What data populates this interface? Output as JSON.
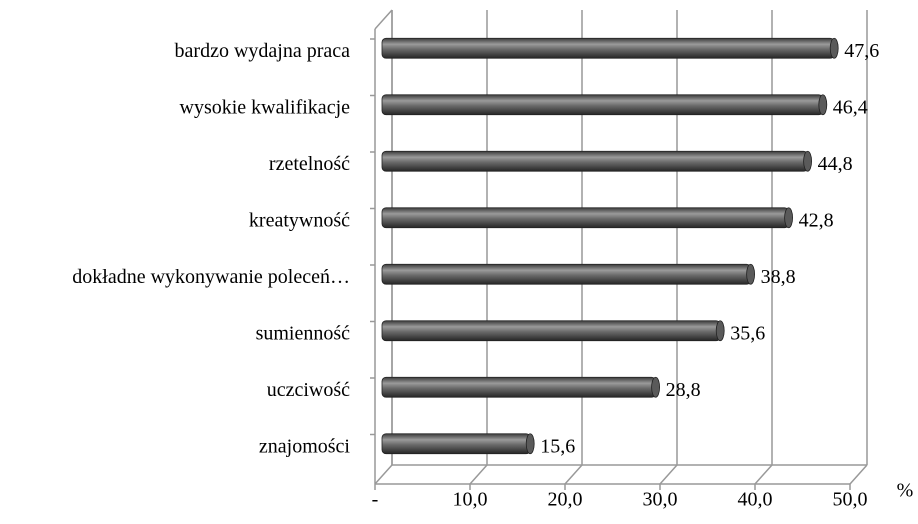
{
  "chart_data": {
    "type": "bar3d_horizontal",
    "categories": [
      "bardzo wydajna praca",
      "wysokie kwalifikacje",
      "rzetelność",
      "kreatywność",
      "dokładne wykonywanie poleceń…",
      "sumienność",
      "uczciwość",
      "znajomości"
    ],
    "values": [
      47.6,
      46.4,
      44.8,
      42.8,
      38.8,
      35.6,
      28.8,
      15.6
    ],
    "value_labels": [
      "47,6",
      "46,4",
      "44,8",
      "42,8",
      "38,8",
      "35,6",
      "28,8",
      "15,6"
    ],
    "color": "#5a5a5a",
    "xlim": [
      0,
      50
    ],
    "xticks": [
      {
        "value": 0,
        "label": "-"
      },
      {
        "value": 10,
        "label": "10,0"
      },
      {
        "value": 20,
        "label": "20,0"
      },
      {
        "value": 30,
        "label": "30,0"
      },
      {
        "value": 40,
        "label": "40,0"
      },
      {
        "value": 50,
        "label": "50,0"
      }
    ],
    "xlabel": "%",
    "grid": true
  }
}
